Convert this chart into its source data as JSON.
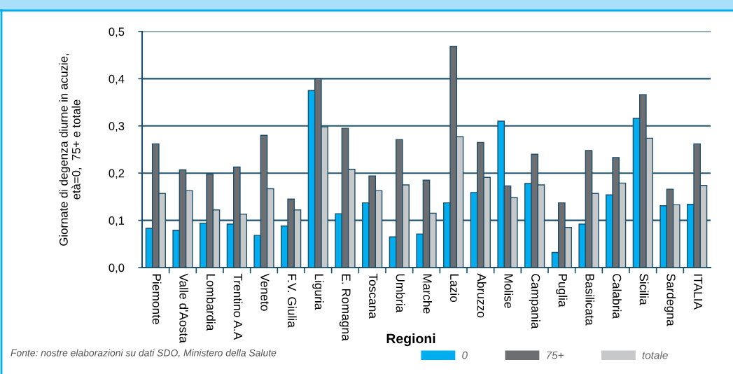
{
  "chart_data": {
    "type": "bar",
    "xlabel": "Regioni",
    "ylabel": "Giornate di degenza diurne in acuzie,\netà=0,  75+ e totale",
    "categories": [
      "Piemonte",
      "Valle d'Aosta",
      "Lombardia",
      "Trentino A.A",
      "Veneto",
      "F.V. Giulia",
      "Liguria",
      "E. Romagna",
      "Toscana",
      "Umbria",
      "Marche",
      "Lazio",
      "Abruzzo",
      "Molise",
      "Campania",
      "Puglia",
      "Basilicata",
      "Calabria",
      "Sicilia",
      "Sardegna",
      "ITALIA"
    ],
    "series": [
      {
        "name": "0",
        "color": "#00aeef",
        "values": [
          0.083,
          0.079,
          0.094,
          0.092,
          0.068,
          0.088,
          0.375,
          0.114,
          0.137,
          0.065,
          0.071,
          0.137,
          0.159,
          0.31,
          0.178,
          0.032,
          0.092,
          0.154,
          0.316,
          0.131,
          0.134
        ]
      },
      {
        "name": "75+",
        "color": "#6d6e71",
        "values": [
          0.262,
          0.207,
          0.198,
          0.213,
          0.28,
          0.145,
          0.4,
          0.295,
          0.194,
          0.271,
          0.185,
          0.468,
          0.265,
          0.173,
          0.24,
          0.137,
          0.248,
          0.233,
          0.366,
          0.166,
          0.262
        ]
      },
      {
        "name": "totale",
        "color": "#c7c8ca",
        "values": [
          0.157,
          0.163,
          0.122,
          0.113,
          0.167,
          0.122,
          0.298,
          0.208,
          0.163,
          0.175,
          0.115,
          0.277,
          0.191,
          0.148,
          0.175,
          0.085,
          0.157,
          0.179,
          0.274,
          0.133,
          0.174
        ]
      }
    ],
    "ylim": [
      0,
      0.5
    ],
    "yticks": [
      {
        "value": 0,
        "label": "0,0"
      },
      {
        "value": 0.1,
        "label": "0,1"
      },
      {
        "value": 0.2,
        "label": "0,2"
      },
      {
        "value": 0.3,
        "label": "0,3"
      },
      {
        "value": 0.4,
        "label": "0,4"
      },
      {
        "value": 0.5,
        "label": "0,5"
      }
    ],
    "grid": "y",
    "legend": "bottom",
    "annotations": [
      "Fonte: nostre elaborazioni su dati SDO, Ministero della Salute"
    ]
  }
}
